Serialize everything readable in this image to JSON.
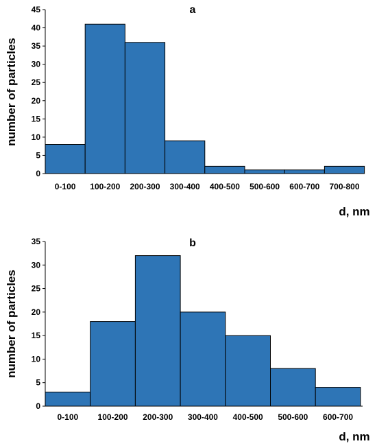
{
  "chart_data": [
    {
      "type": "bar",
      "panel_label": "a",
      "title": "",
      "xlabel": "d, nm",
      "ylabel": "number of particles",
      "ylim": [
        0,
        45
      ],
      "yticks": [
        0,
        5,
        10,
        15,
        20,
        25,
        30,
        35,
        40,
        45
      ],
      "categories": [
        "0-100",
        "100-200",
        "200-300",
        "300-400",
        "400-500",
        "500-600",
        "600-700",
        "700-800"
      ],
      "values": [
        8,
        41,
        36,
        9,
        2,
        1,
        1,
        2
      ],
      "bar_color": "#2e75b6",
      "grid": false,
      "legend": "none"
    },
    {
      "type": "bar",
      "panel_label": "b",
      "title": "",
      "xlabel": "d, nm",
      "ylabel": "number of particles",
      "ylim": [
        0,
        35
      ],
      "yticks": [
        0,
        5,
        10,
        15,
        20,
        25,
        30,
        35
      ],
      "categories": [
        "0-100",
        "100-200",
        "200-300",
        "300-400",
        "400-500",
        "500-600",
        "600-700"
      ],
      "values": [
        3,
        18,
        32,
        20,
        15,
        8,
        4
      ],
      "bar_color": "#2e75b6",
      "grid": false,
      "legend": "none"
    }
  ]
}
